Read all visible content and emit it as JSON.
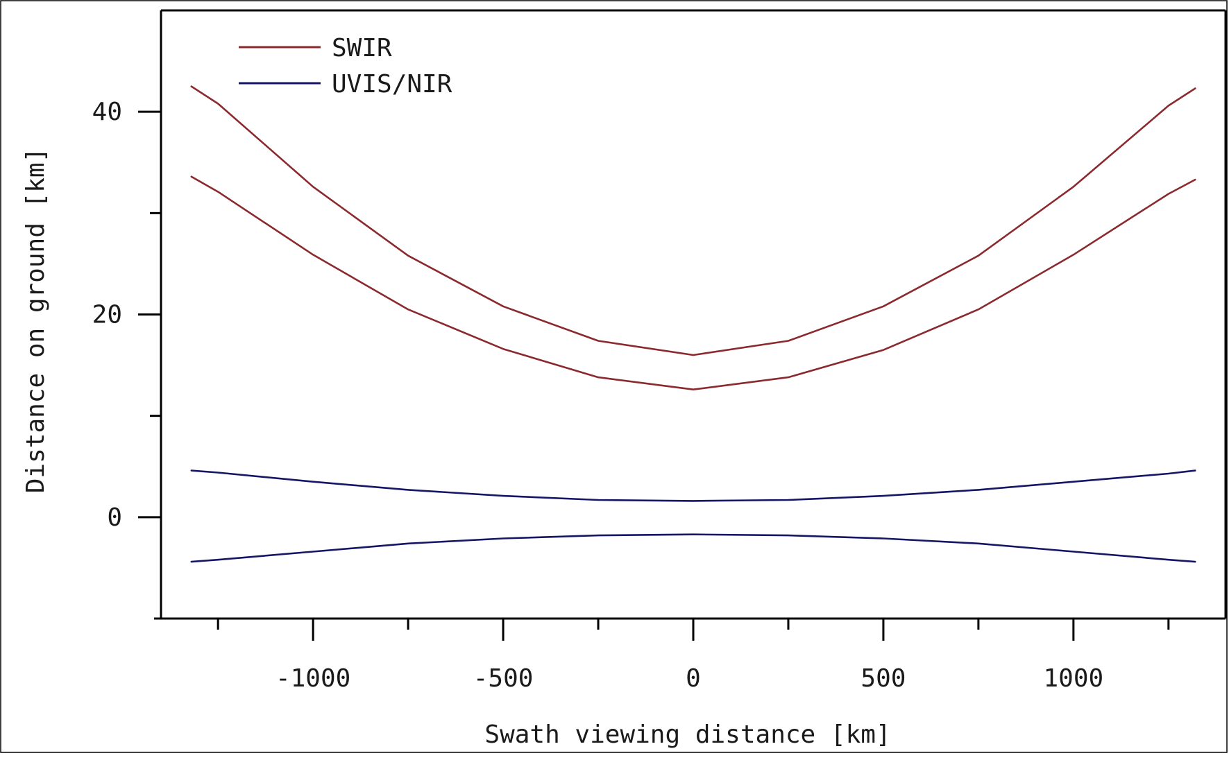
{
  "chart_data": {
    "type": "line",
    "title": "",
    "xlabel": "Swath viewing distance [km]",
    "ylabel": "Distance on ground [km]",
    "xlim": [
      -1400,
      1400
    ],
    "ylim": [
      -10,
      50
    ],
    "grid": false,
    "legend_position": "upper-left",
    "x_ticks": {
      "major": [
        -1000,
        -500,
        0,
        500,
        1000
      ],
      "major_labels": [
        "-1000",
        "-500",
        "0",
        "500",
        "1000"
      ],
      "minor": [
        -1250,
        -750,
        -250,
        250,
        750,
        1250
      ]
    },
    "y_ticks": {
      "major": [
        0,
        20,
        40
      ],
      "major_labels": [
        "0",
        "20",
        "40"
      ],
      "minor": [
        -10,
        10,
        30
      ]
    },
    "x": [
      -1320,
      -1250,
      -1000,
      -750,
      -500,
      -250,
      0,
      250,
      500,
      750,
      1000,
      1250,
      1320
    ],
    "series": [
      {
        "name": "SWIR",
        "legend": true,
        "color": "#8b2a2e",
        "values": [
          42.5,
          40.8,
          32.6,
          25.8,
          20.8,
          17.4,
          16.0,
          17.4,
          20.8,
          25.8,
          32.6,
          40.6,
          42.3
        ]
      },
      {
        "name": "SWIR",
        "legend": false,
        "color": "#8b2a2e",
        "values": [
          33.6,
          32.1,
          25.9,
          20.5,
          16.6,
          13.8,
          12.6,
          13.8,
          16.5,
          20.5,
          25.9,
          31.9,
          33.3
        ]
      },
      {
        "name": "UVIS/NIR",
        "legend": true,
        "color": "#161666",
        "values": [
          4.6,
          4.4,
          3.5,
          2.7,
          2.1,
          1.7,
          1.6,
          1.7,
          2.1,
          2.7,
          3.5,
          4.3,
          4.6
        ]
      },
      {
        "name": "UVIS/NIR",
        "legend": false,
        "color": "#161666",
        "values": [
          -4.4,
          -4.2,
          -3.4,
          -2.6,
          -2.1,
          -1.8,
          -1.7,
          -1.8,
          -2.1,
          -2.6,
          -3.4,
          -4.2,
          -4.4
        ]
      }
    ]
  },
  "legend": {
    "items": [
      {
        "label": "SWIR",
        "color": "#8b2a2e"
      },
      {
        "label": "UVIS/NIR",
        "color": "#161666"
      }
    ]
  }
}
